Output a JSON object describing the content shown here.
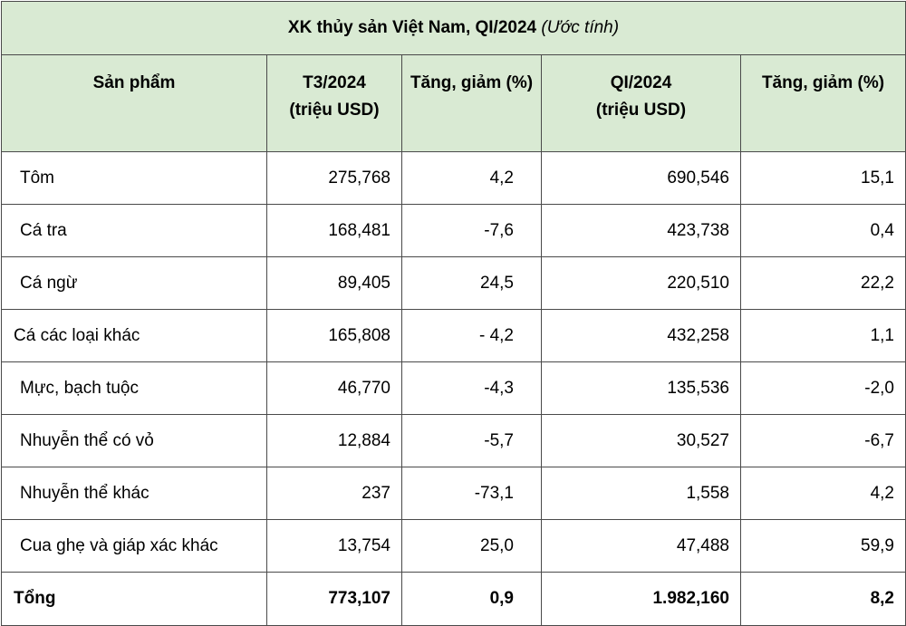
{
  "title": {
    "main": "XK thủy sản Việt Nam, QI/2024",
    "note": "(Ước tính)"
  },
  "headers": {
    "product": "Sản phẩm",
    "t3_line1": "T3/2024",
    "t3_line2": "(triệu USD)",
    "change1": "Tăng, giảm (%)",
    "q1_line1": "QI/2024",
    "q1_line2": "(triệu USD)",
    "change2": "Tăng, giảm (%)"
  },
  "rows": [
    {
      "name": "Tôm",
      "t3": "275,768",
      "ch1": "4,2",
      "q1": "690,546",
      "ch2": "15,1"
    },
    {
      "name": "Cá tra",
      "t3": "168,481",
      "ch1": "-7,6",
      "q1": "423,738",
      "ch2": "0,4"
    },
    {
      "name": "Cá ngừ",
      "t3": "89,405",
      "ch1": "24,5",
      "q1": "220,510",
      "ch2": "22,2"
    },
    {
      "name": "Cá các loại khác",
      "t3": "165,808",
      "ch1": "- 4,2",
      "q1": "432,258",
      "ch2": "1,1"
    },
    {
      "name": "Mực, bạch tuộc",
      "t3": "46,770",
      "ch1": "-4,3",
      "q1": "135,536",
      "ch2": "-2,0"
    },
    {
      "name": "Nhuyễn thể có vỏ",
      "t3": "12,884",
      "ch1": "-5,7",
      "q1": "30,527",
      "ch2": "-6,7"
    },
    {
      "name": "Nhuyễn thể khác",
      "t3": "237",
      "ch1": "-73,1",
      "q1": "1,558",
      "ch2": "4,2"
    },
    {
      "name": "Cua ghẹ và giáp xác khác",
      "t3": "13,754",
      "ch1": "25,0",
      "q1": "47,488",
      "ch2": "59,9"
    }
  ],
  "total": {
    "name": "Tổng",
    "t3": "773,107",
    "ch1": "0,9",
    "q1": "1.982,160",
    "ch2": "8,2"
  }
}
